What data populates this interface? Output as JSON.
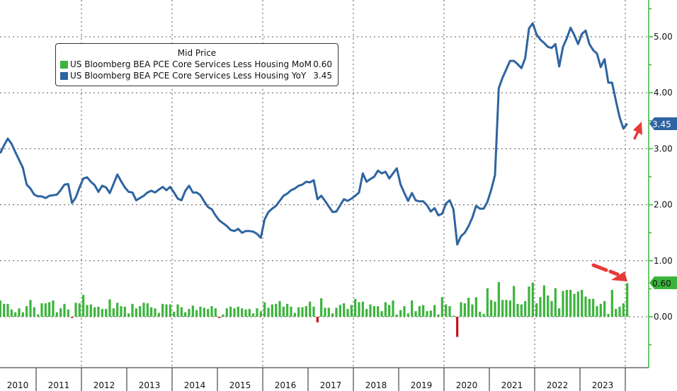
{
  "chart_data": {
    "type": "bar+line",
    "title": "",
    "legend_title": "Mid Price",
    "legend_position": "top-left",
    "series": [
      {
        "name": "US Bloomberg BEA PCE Core Services Less Housing MoM",
        "last_label": "0.60",
        "type": "bar",
        "color": "#3cb43c",
        "negative_color": "#c0141e",
        "values": [
          0.29,
          0.23,
          0.23,
          0.13,
          0.08,
          0.15,
          0.08,
          0.19,
          0.3,
          0.17,
          0.04,
          0.24,
          0.24,
          0.26,
          0.29,
          0.08,
          0.15,
          0.23,
          0.13,
          -0.02,
          0.25,
          0.24,
          0.39,
          0.21,
          0.22,
          0.17,
          0.18,
          0.14,
          0.14,
          0.31,
          0.15,
          0.25,
          0.19,
          0.18,
          0.06,
          0.23,
          0.15,
          0.19,
          0.25,
          0.24,
          0.17,
          0.15,
          0.07,
          0.23,
          0.22,
          0.22,
          0.09,
          0.22,
          0.17,
          0.08,
          0.14,
          0.2,
          0.12,
          0.18,
          0.16,
          0.14,
          0.19,
          0.15,
          -0.02,
          0.04,
          0.15,
          0.18,
          0.15,
          0.18,
          0.15,
          0.13,
          0.14,
          0.06,
          0.15,
          0.1,
          0.26,
          0.16,
          0.22,
          0.23,
          0.28,
          0.18,
          0.23,
          0.18,
          0.07,
          0.17,
          0.17,
          0.19,
          0.27,
          0.18,
          -0.1,
          0.33,
          0.16,
          0.16,
          0.06,
          0.16,
          0.21,
          0.24,
          0.14,
          0.21,
          0.32,
          0.26,
          0.27,
          0.14,
          0.22,
          0.19,
          0.19,
          0.1,
          0.26,
          0.21,
          0.29,
          0.04,
          0.12,
          0.19,
          0.06,
          0.29,
          0.1,
          0.19,
          0.21,
          0.1,
          0.11,
          0.21,
          0.04,
          0.35,
          0.22,
          0.19,
          0.02,
          -0.36,
          0.26,
          0.24,
          0.34,
          0.22,
          0.35,
          0.09,
          0.05,
          0.51,
          0.3,
          0.27,
          0.62,
          0.3,
          0.3,
          0.29,
          0.55,
          0.23,
          0.22,
          0.28,
          0.54,
          0.61,
          0.24,
          0.35,
          0.56,
          0.38,
          0.28,
          0.51,
          0.15,
          0.46,
          0.48,
          0.48,
          0.41,
          0.45,
          0.48,
          0.36,
          0.32,
          0.32,
          0.19,
          0.23,
          0.28,
          0.05,
          0.48,
          0.14,
          0.18,
          0.24,
          0.6
        ]
      },
      {
        "name": "US Bloomberg BEA PCE Core Services Less Housing YoY",
        "last_label": "3.45",
        "type": "line",
        "color": "#2e64a0",
        "values": [
          2.92,
          3.06,
          3.18,
          3.09,
          2.94,
          2.8,
          2.66,
          2.36,
          2.29,
          2.18,
          2.15,
          2.15,
          2.12,
          2.16,
          2.17,
          2.18,
          2.26,
          2.36,
          2.37,
          2.03,
          2.13,
          2.31,
          2.47,
          2.49,
          2.41,
          2.35,
          2.23,
          2.34,
          2.31,
          2.21,
          2.37,
          2.54,
          2.42,
          2.31,
          2.23,
          2.22,
          2.08,
          2.12,
          2.16,
          2.22,
          2.25,
          2.22,
          2.27,
          2.32,
          2.26,
          2.32,
          2.22,
          2.11,
          2.08,
          2.25,
          2.34,
          2.22,
          2.22,
          2.17,
          2.06,
          1.96,
          1.92,
          1.81,
          1.72,
          1.67,
          1.62,
          1.55,
          1.53,
          1.57,
          1.5,
          1.53,
          1.53,
          1.52,
          1.48,
          1.41,
          1.74,
          1.87,
          1.93,
          1.98,
          2.07,
          2.16,
          2.2,
          2.26,
          2.29,
          2.34,
          2.36,
          2.41,
          2.4,
          2.44,
          2.1,
          2.16,
          2.07,
          1.97,
          1.87,
          1.88,
          1.99,
          2.1,
          2.07,
          2.11,
          2.16,
          2.22,
          2.56,
          2.41,
          2.46,
          2.5,
          2.61,
          2.56,
          2.59,
          2.47,
          2.56,
          2.65,
          2.36,
          2.21,
          2.07,
          2.21,
          2.08,
          2.06,
          2.06,
          1.99,
          1.88,
          1.94,
          1.81,
          1.84,
          2.02,
          2.08,
          1.92,
          1.29,
          1.44,
          1.5,
          1.62,
          1.77,
          1.98,
          1.93,
          1.93,
          2.05,
          2.27,
          2.53,
          4.08,
          4.27,
          4.42,
          4.57,
          4.57,
          4.51,
          4.44,
          4.62,
          5.15,
          5.24,
          5.04,
          4.95,
          4.89,
          4.82,
          4.8,
          4.87,
          4.47,
          4.82,
          4.97,
          5.16,
          5.03,
          4.87,
          5.05,
          5.11,
          4.87,
          4.76,
          4.7,
          4.46,
          4.6,
          4.18,
          4.18,
          3.86,
          3.56,
          3.36,
          3.45
        ]
      }
    ],
    "start_month": "2010-03",
    "end_month": "2024-01",
    "x_tick_labels": [
      "2010",
      "2011",
      "2012",
      "2013",
      "2014",
      "2015",
      "2016",
      "2017",
      "2018",
      "2019",
      "2020",
      "2021",
      "2022",
      "2023"
    ],
    "y_tick_labels": [
      "5.00",
      "4.00",
      "3.00",
      "2.00",
      "1.00",
      "0.00"
    ],
    "y_ticks": [
      5,
      4,
      3,
      2,
      1,
      0
    ],
    "ylim": [
      -0.9,
      5.6
    ],
    "xlabel": "",
    "ylabel": "",
    "grid": true
  }
}
